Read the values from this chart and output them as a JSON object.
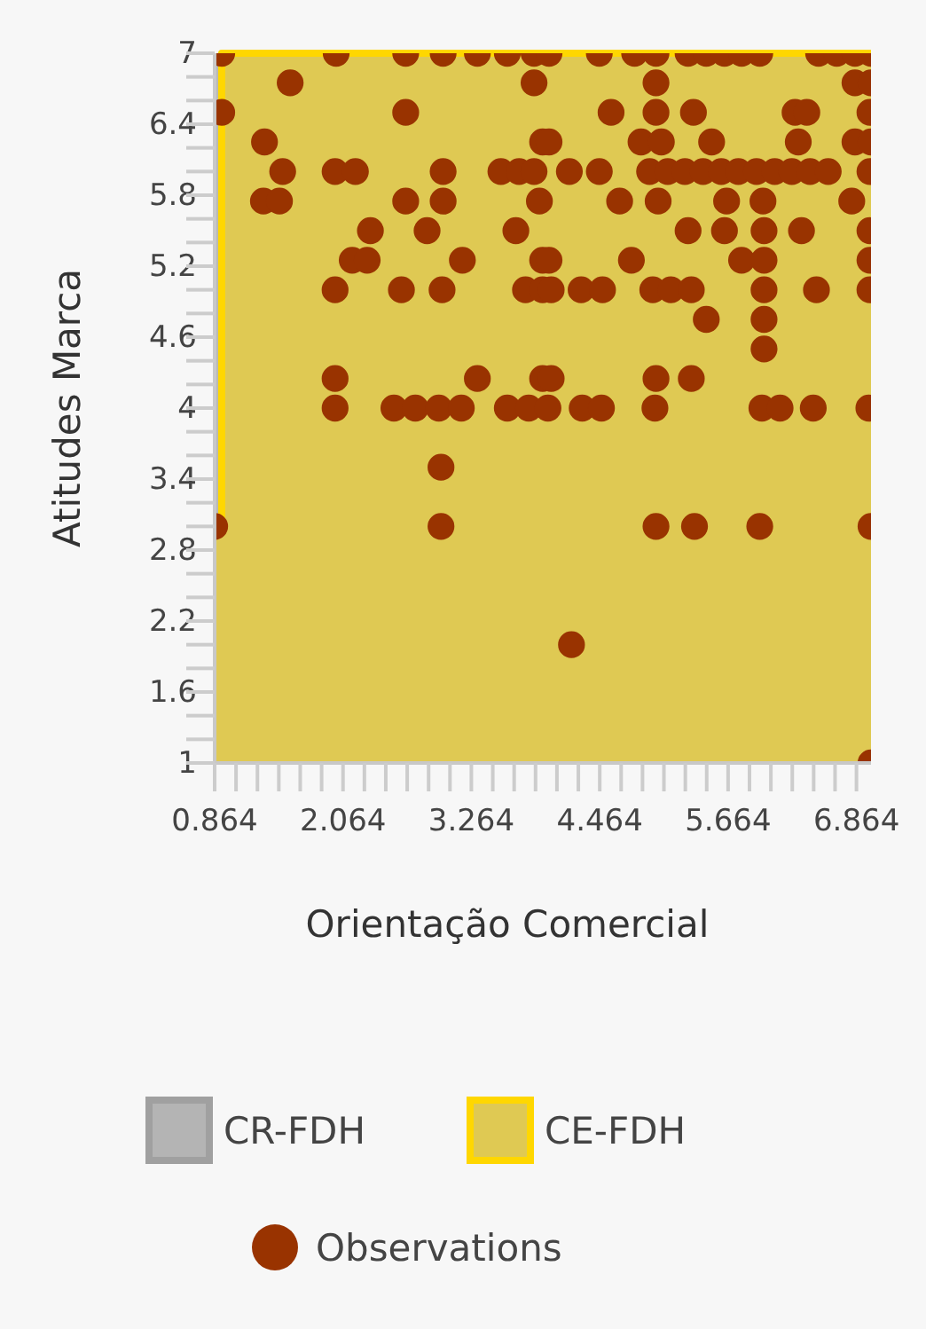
{
  "chart_data": {
    "type": "scatter",
    "xlabel": "Orientação Comercial",
    "ylabel": "Atitudes Marca",
    "xlim": [
      0.864,
      7
    ],
    "ylim": [
      1,
      7
    ],
    "xticks": [
      0.864,
      {
        "value": 1.064,
        "label": null
      },
      {
        "value": 1.264,
        "label": null
      },
      {
        "value": 1.464,
        "label": null
      },
      {
        "value": 1.664,
        "label": null
      },
      {
        "value": 1.864,
        "label": null
      },
      2.064,
      {
        "value": 2.264,
        "label": null
      },
      {
        "value": 2.464,
        "label": null
      },
      {
        "value": 2.664,
        "label": null
      },
      {
        "value": 2.864,
        "label": null
      },
      {
        "value": 3.064,
        "label": null
      },
      3.264,
      {
        "value": 3.464,
        "label": null
      },
      {
        "value": 3.664,
        "label": null
      },
      {
        "value": 3.864,
        "label": null
      },
      {
        "value": 4.064,
        "label": null
      },
      {
        "value": 4.264,
        "label": null
      },
      4.464,
      {
        "value": 4.664,
        "label": null
      },
      {
        "value": 4.864,
        "label": null
      },
      {
        "value": 5.064,
        "label": null
      },
      {
        "value": 5.264,
        "label": null
      },
      {
        "value": 5.464,
        "label": null
      },
      5.664,
      {
        "value": 5.864,
        "label": null
      },
      {
        "value": 6.064,
        "label": null
      },
      {
        "value": 6.264,
        "label": null
      },
      {
        "value": 6.464,
        "label": null
      },
      {
        "value": 6.664,
        "label": null
      },
      6.864
    ],
    "yticks": [
      1,
      {
        "value": 1.2,
        "label": null
      },
      {
        "value": 1.4,
        "label": null
      },
      1.6,
      {
        "value": 1.8,
        "label": null
      },
      {
        "value": 2,
        "label": null
      },
      2.2,
      {
        "value": 2.4,
        "label": null
      },
      {
        "value": 2.6,
        "label": null
      },
      2.8,
      {
        "value": 3,
        "label": null
      },
      {
        "value": 3.2,
        "label": null
      },
      3.4,
      {
        "value": 3.6,
        "label": null
      },
      {
        "value": 3.8,
        "label": null
      },
      4,
      {
        "value": 4.2,
        "label": null
      },
      {
        "value": 4.4,
        "label": null
      },
      4.6,
      {
        "value": 4.8,
        "label": null
      },
      {
        "value": 5,
        "label": null
      },
      5.2,
      {
        "value": 5.4,
        "label": null
      },
      {
        "value": 5.6,
        "label": null
      },
      5.8,
      {
        "value": 6,
        "label": null
      },
      {
        "value": 6.2,
        "label": null
      },
      6.4,
      {
        "value": 6.6,
        "label": null
      },
      {
        "value": 6.8,
        "label": null
      },
      7
    ],
    "legend": "bottom",
    "series": [
      {
        "name": "CR-FDH",
        "type": "area",
        "color": "#b4b4b4",
        "values": [
          null,
          null
        ]
      },
      {
        "name": "CE-FDH",
        "type": "area",
        "color": "#ffd700",
        "x": [
          0.864,
          0.93,
          0.93,
          7
        ],
        "values": [
          3,
          3,
          7,
          7
        ]
      },
      {
        "name": "Observations",
        "marker": "circle",
        "color": "#993300",
        "x": [
          0.93,
          2.0,
          2.65,
          3.0,
          3.32,
          3.6,
          3.85,
          3.99,
          4.46,
          4.79,
          4.99,
          5.29,
          5.46,
          5.63,
          5.79,
          5.96,
          6.51,
          6.68,
          6.85,
          7.0,
          1.57,
          3.85,
          4.99,
          6.85,
          7.0,
          0.93,
          2.65,
          4.57,
          4.99,
          5.34,
          6.29,
          6.4,
          6.99,
          1.33,
          3.93,
          3.99,
          4.85,
          5.04,
          5.51,
          6.32,
          6.85,
          7.0,
          1.5,
          1.99,
          2.18,
          3.0,
          3.54,
          3.71,
          3.85,
          4.18,
          4.46,
          4.93,
          5.1,
          5.26,
          5.43,
          5.6,
          5.76,
          5.93,
          6.1,
          6.26,
          6.43,
          6.6,
          6.99,
          1.32,
          1.47,
          2.65,
          3.0,
          3.9,
          4.65,
          5.01,
          5.65,
          5.99,
          6.82,
          2.32,
          2.85,
          3.68,
          5.29,
          5.63,
          6.0,
          6.35,
          6.99,
          2.15,
          2.29,
          3.18,
          3.93,
          3.99,
          4.76,
          5.79,
          6.0,
          6.99,
          1.99,
          2.61,
          2.99,
          3.77,
          3.93,
          4.01,
          4.29,
          4.49,
          4.96,
          5.13,
          5.32,
          6.0,
          6.49,
          6.99,
          5.46,
          6.0,
          6.0,
          1.99,
          3.32,
          3.93,
          4.01,
          4.99,
          5.32,
          1.99,
          2.54,
          2.74,
          2.96,
          3.17,
          3.6,
          3.8,
          3.98,
          4.3,
          4.48,
          4.98,
          5.98,
          6.15,
          6.46,
          6.98,
          2.98,
          0.864,
          2.98,
          4.99,
          5.35,
          5.96,
          7.0,
          4.2,
          7.0
        ],
        "values": [
          7,
          7,
          7,
          7,
          7,
          7,
          7,
          7,
          7,
          7,
          7,
          7,
          7,
          7,
          7,
          7,
          7,
          7,
          7,
          7,
          6.75,
          6.75,
          6.75,
          6.75,
          6.75,
          6.5,
          6.5,
          6.5,
          6.5,
          6.5,
          6.5,
          6.5,
          6.5,
          6.25,
          6.25,
          6.25,
          6.25,
          6.25,
          6.25,
          6.25,
          6.25,
          6.25,
          6,
          6,
          6,
          6,
          6,
          6,
          6,
          6,
          6,
          6,
          6,
          6,
          6,
          6,
          6,
          6,
          6,
          6,
          6,
          6,
          6,
          5.75,
          5.75,
          5.75,
          5.75,
          5.75,
          5.75,
          5.75,
          5.75,
          5.75,
          5.75,
          5.5,
          5.5,
          5.5,
          5.5,
          5.5,
          5.5,
          5.5,
          5.5,
          5.25,
          5.25,
          5.25,
          5.25,
          5.25,
          5.25,
          5.25,
          5.25,
          5.25,
          5,
          5,
          5,
          5,
          5,
          5,
          5,
          5,
          5,
          5,
          5,
          5,
          5,
          5,
          4.75,
          4.75,
          4.5,
          4.25,
          4.25,
          4.25,
          4.25,
          4.25,
          4.25,
          4,
          4,
          4,
          4,
          4,
          4,
          4,
          4,
          4,
          4,
          4,
          4,
          4,
          4,
          4,
          3.5,
          3,
          3,
          3,
          3,
          3,
          3,
          2,
          1
        ]
      }
    ]
  }
}
